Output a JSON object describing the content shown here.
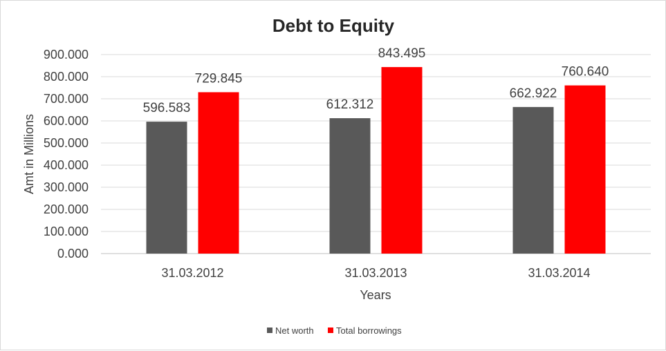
{
  "chart_data": {
    "type": "bar",
    "title": "Debt to Equity",
    "xlabel": "Years",
    "ylabel": "Amt in Millions",
    "categories": [
      "31.03.2012",
      "31.03.2013",
      "31.03.2014"
    ],
    "series": [
      {
        "name": "Net worth",
        "color": "#595959",
        "values": [
          596.583,
          612.312,
          662.922
        ],
        "labels": [
          "596.583",
          "612.312",
          "662.922"
        ]
      },
      {
        "name": "Total borrowings",
        "color": "#ff0000",
        "values": [
          729.845,
          843.495,
          760.64
        ],
        "labels": [
          "729.845",
          "843.495",
          "760.640"
        ]
      }
    ],
    "ylim": [
      0,
      900
    ],
    "yticks": [
      "0.000",
      "100.000",
      "200.000",
      "300.000",
      "400.000",
      "500.000",
      "600.000",
      "700.000",
      "800.000",
      "900.000"
    ],
    "grid": true,
    "legend_position": "bottom"
  }
}
